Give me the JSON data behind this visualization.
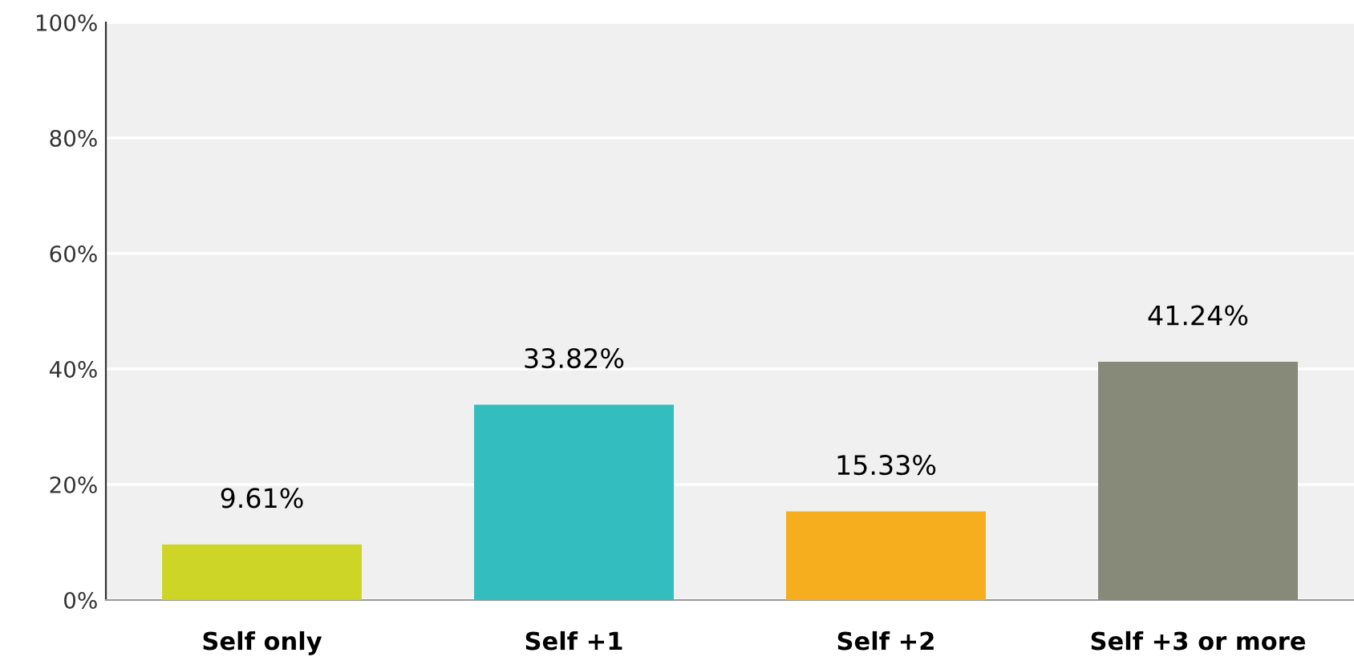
{
  "chart_data": {
    "type": "bar",
    "categories": [
      "Self only",
      "Self +1",
      "Self +2",
      "Self +3 or more"
    ],
    "values": [
      9.61,
      33.82,
      15.33,
      41.24
    ],
    "colors": [
      "#cdd627",
      "#33bdbf",
      "#f6ae1f",
      "#878a78"
    ],
    "value_labels": [
      "9.61%",
      "33.82%",
      "15.33%",
      "41.24%"
    ],
    "ylim": [
      0,
      100
    ],
    "yticks": [
      {
        "value": 0,
        "label": "0%"
      },
      {
        "value": 20,
        "label": "20%"
      },
      {
        "value": 40,
        "label": "40%"
      },
      {
        "value": 60,
        "label": "60%"
      },
      {
        "value": 80,
        "label": "80%"
      },
      {
        "value": 100,
        "label": "100%"
      }
    ],
    "grid": "y"
  }
}
